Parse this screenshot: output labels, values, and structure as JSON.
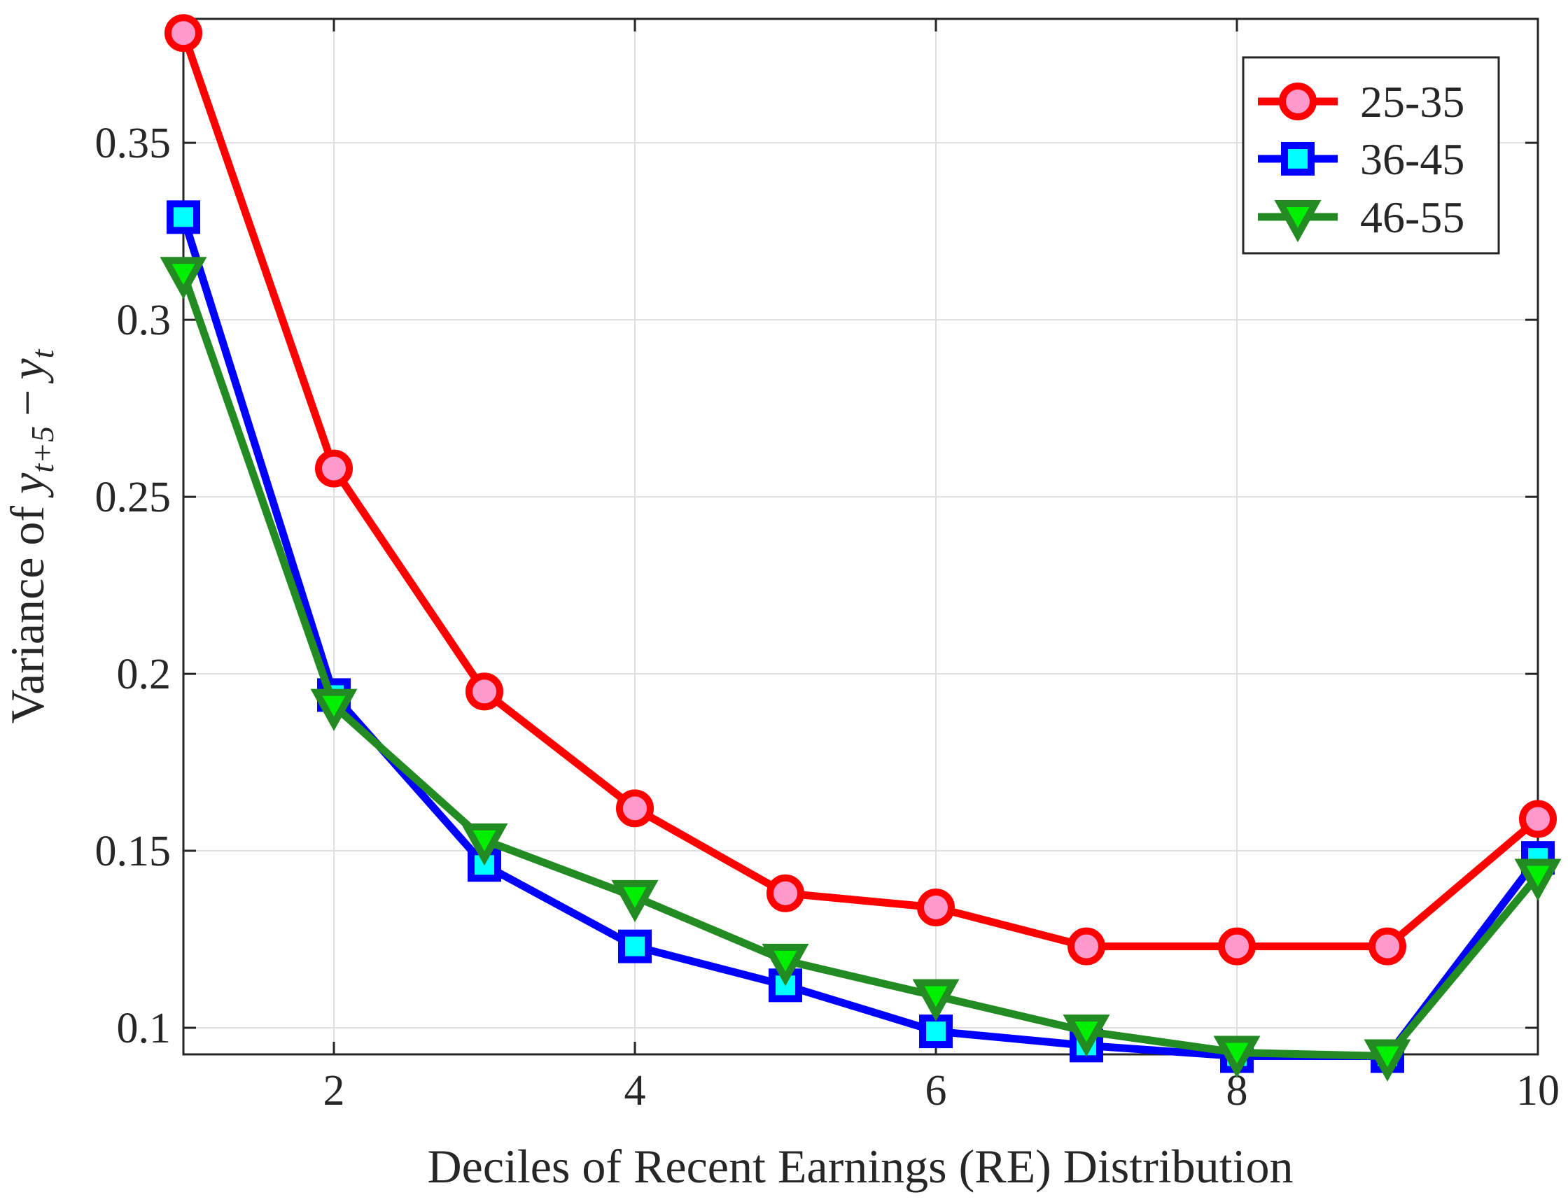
{
  "chart_data": {
    "type": "line",
    "xlabel": "Deciles of Recent Earnings (RE) Distribution",
    "ylabel": {
      "prefix": "Variance of ",
      "math": {
        "var1": "y",
        "sub1": "t+5",
        "op": "−",
        "var2": "y",
        "sub2": "t"
      }
    },
    "xlim": [
      1,
      10
    ],
    "ylim": [
      0.0925,
      0.385
    ],
    "xticks": [
      {
        "value": 2,
        "label": "2"
      },
      {
        "value": 4,
        "label": "4"
      },
      {
        "value": 6,
        "label": "6"
      },
      {
        "value": 8,
        "label": "8"
      },
      {
        "value": 10,
        "label": "10"
      }
    ],
    "yticks": [
      {
        "value": 0.1,
        "label": "0.1"
      },
      {
        "value": 0.15,
        "label": "0.15"
      },
      {
        "value": 0.2,
        "label": "0.2"
      },
      {
        "value": 0.25,
        "label": "0.25"
      },
      {
        "value": 0.3,
        "label": "0.3"
      },
      {
        "value": 0.35,
        "label": "0.35"
      }
    ],
    "grid": true,
    "legend": {
      "position": "top-right"
    },
    "x": [
      1,
      2,
      3,
      4,
      5,
      6,
      7,
      8,
      9,
      10
    ],
    "series": [
      {
        "name": "25-35",
        "line_color": "#ff0000",
        "marker": "circle",
        "marker_fill": "#ff99cc",
        "values": [
          0.381,
          0.258,
          0.195,
          0.162,
          0.138,
          0.134,
          0.123,
          0.123,
          0.123,
          0.159
        ]
      },
      {
        "name": "36-45",
        "line_color": "#0000ff",
        "marker": "square",
        "marker_fill": "#00ffff",
        "values": [
          0.329,
          0.194,
          0.146,
          0.123,
          0.112,
          0.099,
          0.095,
          0.092,
          0.092,
          0.148
        ]
      },
      {
        "name": "46-55",
        "line_color": "#228b22",
        "marker": "triangle-down",
        "marker_fill": "#00ee00",
        "values": [
          0.313,
          0.191,
          0.153,
          0.137,
          0.119,
          0.109,
          0.099,
          0.093,
          0.092,
          0.143
        ]
      }
    ]
  }
}
